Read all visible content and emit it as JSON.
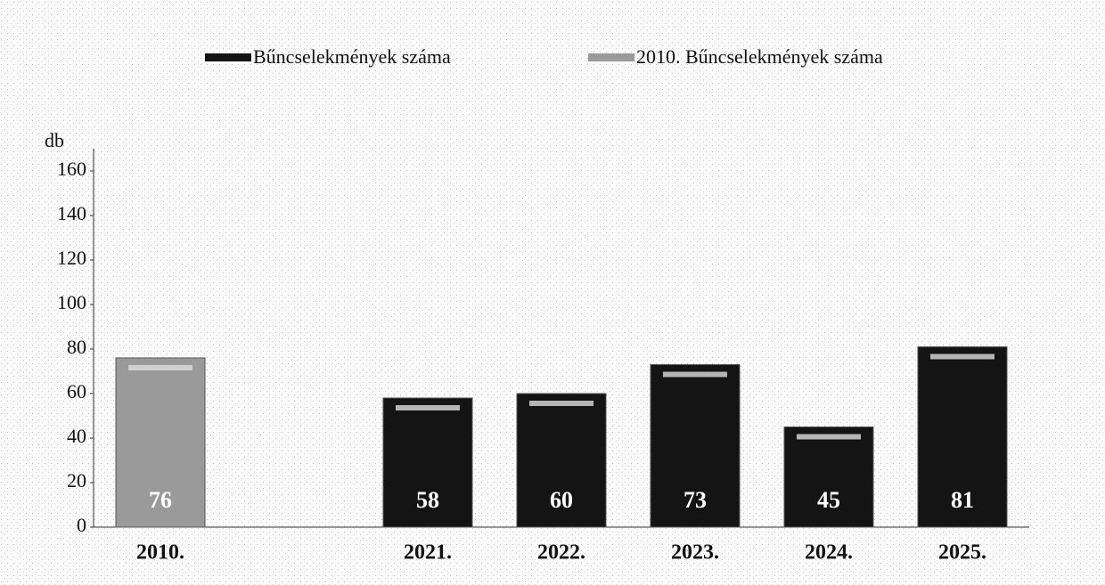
{
  "chart_data": {
    "type": "bar",
    "y_label": "db",
    "categories": [
      "2010.",
      null,
      "2021.",
      "2022.",
      "2023.",
      "2024.",
      "2025."
    ],
    "series": [
      {
        "name": "Bűncselekmények száma",
        "color": "#141414",
        "values": [
          null,
          null,
          58,
          60,
          73,
          45,
          81
        ]
      },
      {
        "name": "2010. Bűncselekmények száma",
        "color": "#9a9a9a",
        "values": [
          76,
          null,
          null,
          null,
          null,
          null,
          null
        ]
      }
    ],
    "ylim": [
      0,
      170
    ],
    "yticks": [
      0,
      20,
      40,
      60,
      80,
      100,
      120,
      140,
      160
    ],
    "legend": "top"
  }
}
